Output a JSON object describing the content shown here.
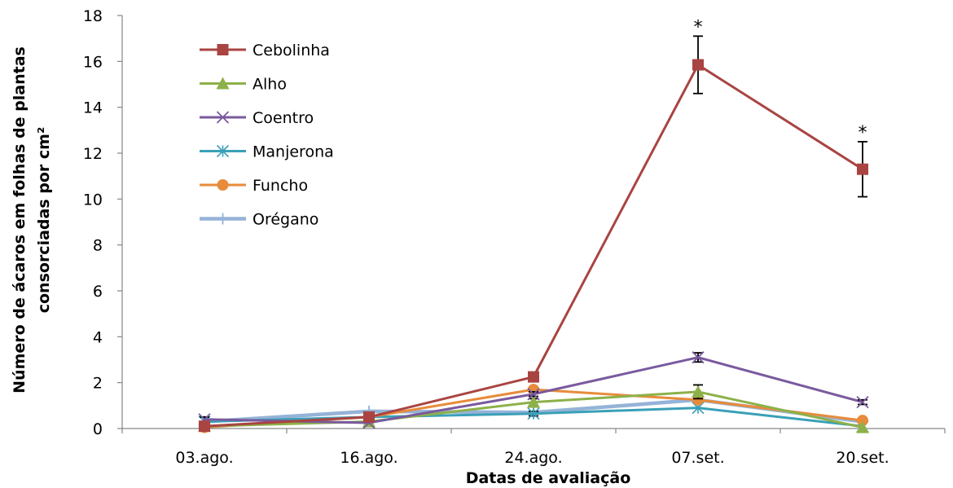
{
  "chart_data": {
    "type": "line",
    "xlabel": "Datas de avaliação",
    "ylabel_lines": [
      "Número de ácaros em folhas de plantas",
      "consorciadas por cm²"
    ],
    "categories": [
      "03.ago.",
      "16.ago.",
      "24.ago.",
      "07.set.",
      "20.set."
    ],
    "ylim": [
      0,
      18
    ],
    "yticks": [
      "0",
      "2",
      "4",
      "6",
      "8",
      "10",
      "12",
      "14",
      "16",
      "18"
    ],
    "legend_position": "top-left",
    "grid": false,
    "annotations": [
      {
        "category": "07.set.",
        "text": "*",
        "y": 17.1
      },
      {
        "category": "20.set.",
        "text": "*",
        "y": 12.5
      }
    ],
    "series": [
      {
        "name": "Cebolinha",
        "color": "#A94442",
        "marker": "square",
        "values": [
          0.1,
          0.5,
          2.25,
          15.85,
          11.3
        ],
        "errors": [
          0,
          0,
          0,
          1.25,
          1.2
        ]
      },
      {
        "name": "Alho",
        "color": "#8DB14A",
        "marker": "triangle",
        "values": [
          0.1,
          0.3,
          1.15,
          1.6,
          0.05
        ],
        "errors": [
          0,
          0,
          0.15,
          0.3,
          0
        ]
      },
      {
        "name": "Coentro",
        "color": "#7A5A9E",
        "marker": "x",
        "values": [
          0.4,
          0.25,
          1.5,
          3.1,
          1.15
        ],
        "errors": [
          0.1,
          0,
          0.1,
          0.2,
          0.1
        ]
      },
      {
        "name": "Manjerona",
        "color": "#3AA0B8",
        "marker": "asterisk",
        "values": [
          0.3,
          0.5,
          0.65,
          0.9,
          0.1
        ],
        "errors": [
          0,
          0,
          0.1,
          0,
          0
        ]
      },
      {
        "name": "Funcho",
        "color": "#E88B3A",
        "marker": "circle",
        "values": [
          0.05,
          0.5,
          1.7,
          1.25,
          0.35
        ],
        "errors": [
          0,
          0,
          0,
          0,
          0
        ]
      },
      {
        "name": "Orégano",
        "color": "#95B3D7",
        "marker": "plus",
        "values": [
          0.3,
          0.75,
          0.7,
          1.25,
          0.3
        ],
        "errors": [
          0,
          0,
          0,
          0,
          0
        ]
      }
    ]
  }
}
